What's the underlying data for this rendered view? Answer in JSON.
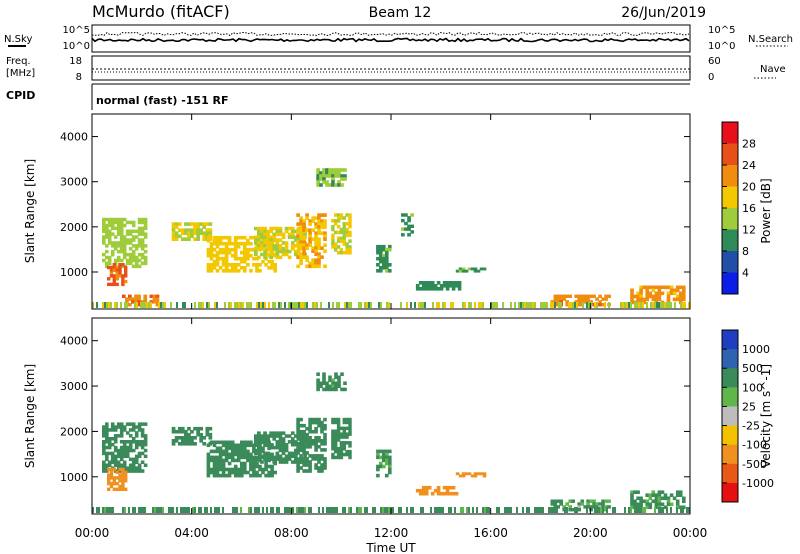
{
  "header": {
    "station": "McMurdo (fitACF)",
    "beam": "Beam 12",
    "date": "26/Jun/2019"
  },
  "top_panels": {
    "nsky_label": "N.Sky",
    "nsearch_label": "N.Search",
    "nsky_ticks": [
      "10^5",
      "10^0"
    ],
    "nsearch_ticks": [
      "10^5",
      "10^0"
    ],
    "freq_label_1": "Freq.",
    "freq_label_2": "[MHz]",
    "freq_ticks": [
      "18",
      "8"
    ],
    "nave_label": "Nave",
    "nave_ticks": [
      "60",
      "0"
    ],
    "cpid_label": "CPID",
    "cpid_text": "normal (fast) -151 RF"
  },
  "chart_data": [
    {
      "type": "heatmap",
      "name": "Power",
      "ylabel": "Slant Range [km]",
      "colorbar_label": "Power [dB]",
      "colorbar_ticks": [
        "28",
        "24",
        "20",
        "16",
        "12",
        "8",
        "4"
      ],
      "colorbar_colors": [
        "#e8101a",
        "#e8501a",
        "#f08c10",
        "#f4c800",
        "#9fcc3a",
        "#2e8b57",
        "#214fa8",
        "#0a1ee6"
      ],
      "yticks": [
        "4000",
        "3000",
        "2000",
        "1000"
      ],
      "ylim": [
        180,
        4500
      ],
      "xlim": [
        0,
        24
      ],
      "regions": [
        {
          "t0": 0.4,
          "t1": 2.2,
          "r0": 1100,
          "r1": 2200,
          "v": 14
        },
        {
          "t0": 0.6,
          "t1": 1.4,
          "r0": 700,
          "r1": 1200,
          "v": 26
        },
        {
          "t0": 1.2,
          "t1": 2.8,
          "r0": 250,
          "r1": 500,
          "v": 24
        },
        {
          "t0": 3.2,
          "t1": 4.8,
          "r0": 1700,
          "r1": 2100,
          "v": 16
        },
        {
          "t0": 4.6,
          "t1": 7.4,
          "r0": 1000,
          "r1": 1800,
          "v": 18
        },
        {
          "t0": 6.5,
          "t1": 8.6,
          "r0": 1300,
          "r1": 2000,
          "v": 16
        },
        {
          "t0": 8.2,
          "t1": 9.4,
          "r0": 1100,
          "r1": 2300,
          "v": 20
        },
        {
          "t0": 9.6,
          "t1": 10.4,
          "r0": 1400,
          "r1": 2300,
          "v": 16
        },
        {
          "t0": 9.0,
          "t1": 10.2,
          "r0": 2900,
          "r1": 3300,
          "v": 12
        },
        {
          "t0": 11.4,
          "t1": 12.0,
          "r0": 1000,
          "r1": 1600,
          "v": 10
        },
        {
          "t0": 12.4,
          "t1": 12.9,
          "r0": 1800,
          "r1": 2300,
          "v": 10
        },
        {
          "t0": 13.0,
          "t1": 14.8,
          "r0": 600,
          "r1": 800,
          "v": 9
        },
        {
          "t0": 14.6,
          "t1": 15.8,
          "r0": 1000,
          "r1": 1100,
          "v": 10
        },
        {
          "t0": 18.4,
          "t1": 20.8,
          "r0": 250,
          "r1": 500,
          "v": 24
        },
        {
          "t0": 21.6,
          "t1": 23.8,
          "r0": 300,
          "r1": 700,
          "v": 22
        }
      ]
    },
    {
      "type": "heatmap",
      "name": "Velocity",
      "ylabel": "Slant Range [km]",
      "colorbar_label": "Velocity [m s^-1]",
      "colorbar_ticks": [
        "1000",
        "500",
        "100",
        "25",
        "-25",
        "-100",
        "-500",
        "-1000"
      ],
      "colorbar_colors": [
        "#1f3fc0",
        "#2e63b0",
        "#3a8a5a",
        "#5fb64a",
        "#bdbdbd",
        "#f2c200",
        "#f09020",
        "#ea5818",
        "#e51010"
      ],
      "yticks": [
        "4000",
        "3000",
        "2000",
        "1000"
      ],
      "ylim": [
        180,
        4500
      ],
      "xlim": [
        0,
        24
      ],
      "xticks": [
        "00:00",
        "04:00",
        "08:00",
        "12:00",
        "16:00",
        "20:00",
        "00:00"
      ],
      "xlabel": "Time UT",
      "regions": [
        {
          "t0": 0.4,
          "t1": 2.2,
          "r0": 1100,
          "r1": 2200,
          "v": 120
        },
        {
          "t0": 0.6,
          "t1": 1.4,
          "r0": 700,
          "r1": 1200,
          "v": -120
        },
        {
          "t0": 3.2,
          "t1": 4.8,
          "r0": 1700,
          "r1": 2100,
          "v": 120
        },
        {
          "t0": 4.6,
          "t1": 7.4,
          "r0": 1000,
          "r1": 1800,
          "v": 120
        },
        {
          "t0": 6.5,
          "t1": 8.6,
          "r0": 1300,
          "r1": 2000,
          "v": 120
        },
        {
          "t0": 8.2,
          "t1": 9.4,
          "r0": 1100,
          "r1": 2300,
          "v": 140
        },
        {
          "t0": 9.6,
          "t1": 10.4,
          "r0": 1400,
          "r1": 2300,
          "v": 120
        },
        {
          "t0": 9.0,
          "t1": 10.2,
          "r0": 2900,
          "r1": 3300,
          "v": 90
        },
        {
          "t0": 11.4,
          "t1": 12.0,
          "r0": 1000,
          "r1": 1600,
          "v": 80
        },
        {
          "t0": 13.0,
          "t1": 14.8,
          "r0": 600,
          "r1": 800,
          "v": -150
        },
        {
          "t0": 14.6,
          "t1": 15.8,
          "r0": 1000,
          "r1": 1100,
          "v": -150
        },
        {
          "t0": 18.4,
          "t1": 20.8,
          "r0": 250,
          "r1": 500,
          "v": 60
        },
        {
          "t0": 21.6,
          "t1": 23.8,
          "r0": 300,
          "r1": 700,
          "v": 80
        }
      ]
    }
  ]
}
